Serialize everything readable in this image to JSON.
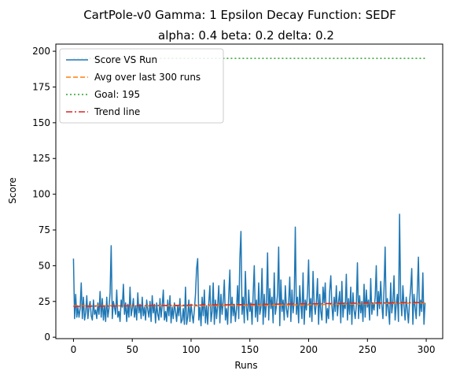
{
  "chart_data": {
    "type": "line",
    "title_line1": "CartPole-v0 Gamma: 1 Epsilon Decay Function: SEDF",
    "title_line2": "alpha: 0.4  beta: 0.2  delta: 0.2",
    "xlabel": "Runs",
    "ylabel": "Score",
    "xlim": [
      -15,
      314
    ],
    "ylim": [
      -1,
      205
    ],
    "xticks": [
      0,
      50,
      100,
      150,
      200,
      250,
      300
    ],
    "yticks": [
      0,
      25,
      50,
      75,
      100,
      125,
      150,
      175,
      200
    ],
    "legend_position": "top-left",
    "colors": {
      "score": "#1f77b4",
      "avg": "#ff7f0e",
      "goal": "#2ca02c",
      "trend": "#d62728"
    },
    "series": [
      {
        "name": "Score VS Run",
        "style": "solid",
        "values": [
          55,
          13,
          30,
          14,
          21,
          14,
          20,
          38,
          13,
          28,
          12,
          17,
          29,
          13,
          21,
          25,
          15,
          12,
          26,
          16,
          19,
          13,
          24,
          16,
          32,
          14,
          27,
          12,
          22,
          11,
          28,
          14,
          20,
          31,
          64,
          13,
          25,
          21,
          16,
          33,
          14,
          18,
          11,
          26,
          21,
          37,
          16,
          24,
          11,
          23,
          14,
          35,
          15,
          20,
          27,
          14,
          22,
          12,
          31,
          17,
          23,
          13,
          28,
          15,
          21,
          12,
          26,
          19,
          14,
          25,
          11,
          29,
          17,
          23,
          10,
          24,
          16,
          12,
          27,
          14,
          22,
          33,
          12,
          18,
          11,
          26,
          15,
          29,
          10,
          21,
          13,
          24,
          18,
          11,
          22,
          15,
          27,
          10,
          12,
          20,
          9,
          35,
          9,
          14,
          26,
          11,
          23,
          16,
          10,
          19,
          30,
          48,
          55,
          12,
          21,
          8,
          28,
          15,
          33,
          10,
          22,
          9,
          24,
          36,
          11,
          18,
          38,
          9,
          26,
          13,
          22,
          36,
          10,
          30,
          16,
          25,
          40,
          12,
          20,
          9,
          30,
          47,
          10,
          28,
          15,
          23,
          11,
          20,
          36,
          13,
          55,
          74,
          16,
          28,
          10,
          46,
          21,
          12,
          33,
          18,
          24,
          9,
          30,
          50,
          14,
          26,
          11,
          38,
          16,
          21,
          48,
          9,
          30,
          14,
          24,
          59,
          12,
          34,
          20,
          28,
          10,
          45,
          16,
          22,
          30,
          63,
          8,
          40,
          18,
          26,
          12,
          36,
          20,
          14,
          24,
          42,
          11,
          33,
          17,
          25,
          77,
          16,
          28,
          10,
          36,
          22,
          13,
          45,
          9,
          26,
          19,
          31,
          54,
          14,
          27,
          11,
          46,
          23,
          16,
          25,
          41,
          9,
          30,
          18,
          12,
          35,
          24,
          38,
          10,
          20,
          13,
          32,
          43,
          22,
          12,
          28,
          18,
          36,
          15,
          25,
          32,
          10,
          39,
          14,
          24,
          20,
          44,
          12,
          27,
          16,
          35,
          9,
          31,
          19,
          13,
          22,
          52,
          13,
          29,
          17,
          25,
          11,
          37,
          14,
          33,
          21,
          26,
          12,
          41,
          16,
          24,
          19,
          28,
          50,
          15,
          32,
          20,
          39,
          23,
          13,
          34,
          63,
          15,
          27,
          20,
          9,
          38,
          17,
          24,
          43,
          12,
          23,
          30,
          11,
          86,
          27,
          15,
          36,
          22,
          12,
          28,
          19,
          10,
          25,
          34,
          48,
          9,
          30,
          21,
          13,
          32,
          56,
          15,
          26,
          18,
          45,
          9,
          24
        ],
        "x_end": 299
      },
      {
        "name": "Avg over last 300 runs",
        "style": "dashed",
        "x": [
          0,
          99,
          199,
          299
        ],
        "values": [
          22,
          21.9,
          22.7,
          24
        ]
      },
      {
        "name": "Goal: 195",
        "style": "dotted",
        "x": [
          0,
          299
        ],
        "values": [
          195,
          195
        ]
      },
      {
        "name": "Trend line",
        "style": "dashdot",
        "x": [
          0,
          299
        ],
        "values": [
          21.5,
          24.3
        ]
      }
    ]
  }
}
